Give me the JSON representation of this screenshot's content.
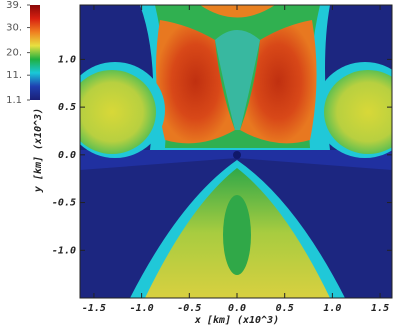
{
  "chart_data": {
    "type": "heatmap",
    "xlabel": "x [km] (x10^3)",
    "ylabel": "y [km] (x10^3)",
    "xlim": [
      -1.646,
      1.625
    ],
    "ylim": [
      -1.5,
      1.57
    ],
    "xticks": [
      -1.5,
      {
        "value": -1.0,
        "label": "-1.0"
      },
      -0.5,
      {
        "value": 0.0,
        "label": "0.0"
      },
      0.5,
      {
        "value": 1.0,
        "label": "1.0"
      },
      1.5
    ],
    "yticks": [
      {
        "value": 1.0,
        "label": "1.0"
      },
      0.5,
      {
        "value": 0.0,
        "label": "0.0"
      },
      -0.5,
      {
        "value": -1.0,
        "label": "-1.0"
      }
    ],
    "colorbar": {
      "lim": [
        1.1,
        39
      ],
      "ticks": [
        {
          "value": 39,
          "label": "39."
        },
        {
          "value": 30,
          "label": "30."
        },
        {
          "value": 20,
          "label": "20."
        },
        {
          "value": 11,
          "label": "11."
        },
        1.1
      ],
      "colors": [
        "#1a1f78",
        "#1f3fb0",
        "#19c8d8",
        "#20b040",
        "#e8e040",
        "#f08020",
        "#d82010",
        "#8a0808"
      ]
    }
  }
}
